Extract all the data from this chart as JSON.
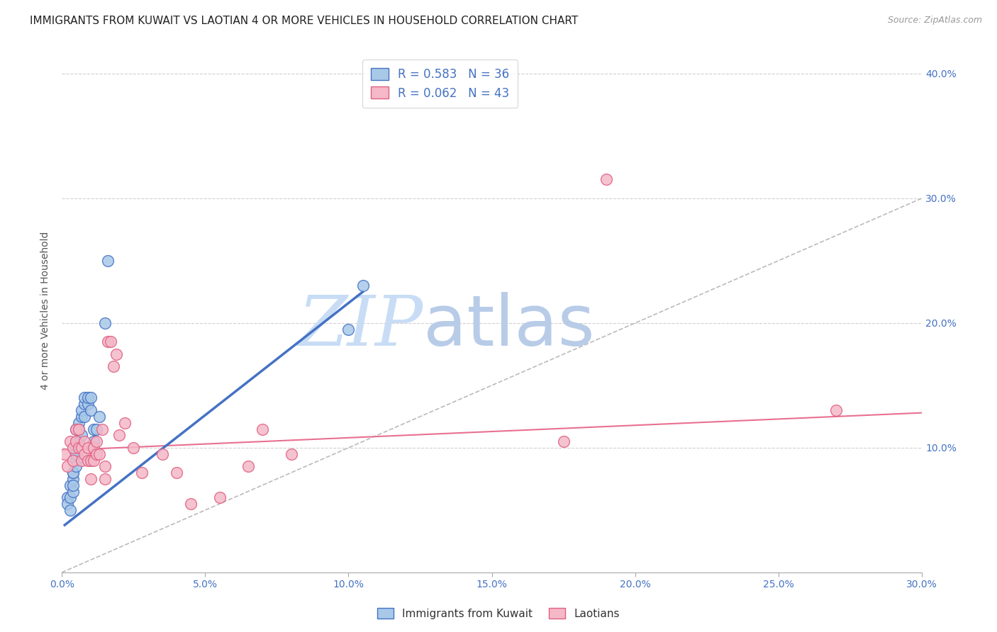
{
  "title": "IMMIGRANTS FROM KUWAIT VS LAOTIAN 4 OR MORE VEHICLES IN HOUSEHOLD CORRELATION CHART",
  "source": "Source: ZipAtlas.com",
  "ylabel": "4 or more Vehicles in Household",
  "xlim": [
    0.0,
    0.3
  ],
  "ylim": [
    0.0,
    0.42
  ],
  "xticks": [
    0.0,
    0.05,
    0.1,
    0.15,
    0.2,
    0.25,
    0.3
  ],
  "xtick_labels": [
    "0.0%",
    "5.0%",
    "10.0%",
    "15.0%",
    "20.0%",
    "25.0%",
    "30.0%"
  ],
  "ytick_right_labels": [
    "",
    "10.0%",
    "20.0%",
    "30.0%",
    "40.0%"
  ],
  "blue_color": "#a8c8e8",
  "blue_edge_color": "#4472c4",
  "pink_color": "#f4b8c8",
  "pink_edge_color": "#e06080",
  "blue_r": 0.583,
  "blue_n": 36,
  "pink_r": 0.062,
  "pink_n": 43,
  "background_color": "#ffffff",
  "grid_color": "#d0d0d0",
  "blue_scatter_x": [
    0.002,
    0.002,
    0.003,
    0.003,
    0.003,
    0.004,
    0.004,
    0.004,
    0.004,
    0.004,
    0.005,
    0.005,
    0.005,
    0.005,
    0.005,
    0.006,
    0.006,
    0.006,
    0.007,
    0.007,
    0.007,
    0.008,
    0.008,
    0.008,
    0.009,
    0.009,
    0.01,
    0.01,
    0.011,
    0.011,
    0.012,
    0.013,
    0.015,
    0.016,
    0.1,
    0.105
  ],
  "blue_scatter_y": [
    0.06,
    0.055,
    0.07,
    0.06,
    0.05,
    0.075,
    0.08,
    0.065,
    0.07,
    0.08,
    0.09,
    0.1,
    0.095,
    0.085,
    0.115,
    0.105,
    0.12,
    0.115,
    0.11,
    0.125,
    0.13,
    0.125,
    0.135,
    0.14,
    0.135,
    0.14,
    0.13,
    0.14,
    0.105,
    0.115,
    0.115,
    0.125,
    0.2,
    0.25,
    0.195,
    0.23
  ],
  "pink_scatter_x": [
    0.001,
    0.002,
    0.003,
    0.004,
    0.004,
    0.005,
    0.005,
    0.006,
    0.006,
    0.007,
    0.007,
    0.008,
    0.008,
    0.009,
    0.009,
    0.01,
    0.01,
    0.011,
    0.011,
    0.012,
    0.012,
    0.013,
    0.014,
    0.015,
    0.015,
    0.016,
    0.017,
    0.018,
    0.019,
    0.02,
    0.022,
    0.025,
    0.028,
    0.035,
    0.04,
    0.045,
    0.055,
    0.065,
    0.07,
    0.08,
    0.175,
    0.19,
    0.27
  ],
  "pink_scatter_y": [
    0.095,
    0.085,
    0.105,
    0.09,
    0.1,
    0.115,
    0.105,
    0.1,
    0.115,
    0.09,
    0.1,
    0.095,
    0.105,
    0.09,
    0.1,
    0.075,
    0.09,
    0.09,
    0.1,
    0.095,
    0.105,
    0.095,
    0.115,
    0.075,
    0.085,
    0.185,
    0.185,
    0.165,
    0.175,
    0.11,
    0.12,
    0.1,
    0.08,
    0.095,
    0.08,
    0.055,
    0.06,
    0.085,
    0.115,
    0.095,
    0.105,
    0.315,
    0.13
  ],
  "blue_line_x": [
    0.001,
    0.105
  ],
  "blue_line_y": [
    0.038,
    0.225
  ],
  "pink_line_x": [
    0.0,
    0.3
  ],
  "pink_line_y": [
    0.098,
    0.128
  ],
  "ref_line_x": [
    0.0,
    0.42
  ],
  "ref_line_y": [
    0.0,
    0.42
  ],
  "watermark_zip": "ZIP",
  "watermark_atlas": "atlas",
  "watermark_color_zip": "#c8dff0",
  "watermark_color_atlas": "#b0cce0",
  "title_fontsize": 11,
  "axis_label_fontsize": 10,
  "tick_fontsize": 10,
  "legend_fontsize": 12
}
